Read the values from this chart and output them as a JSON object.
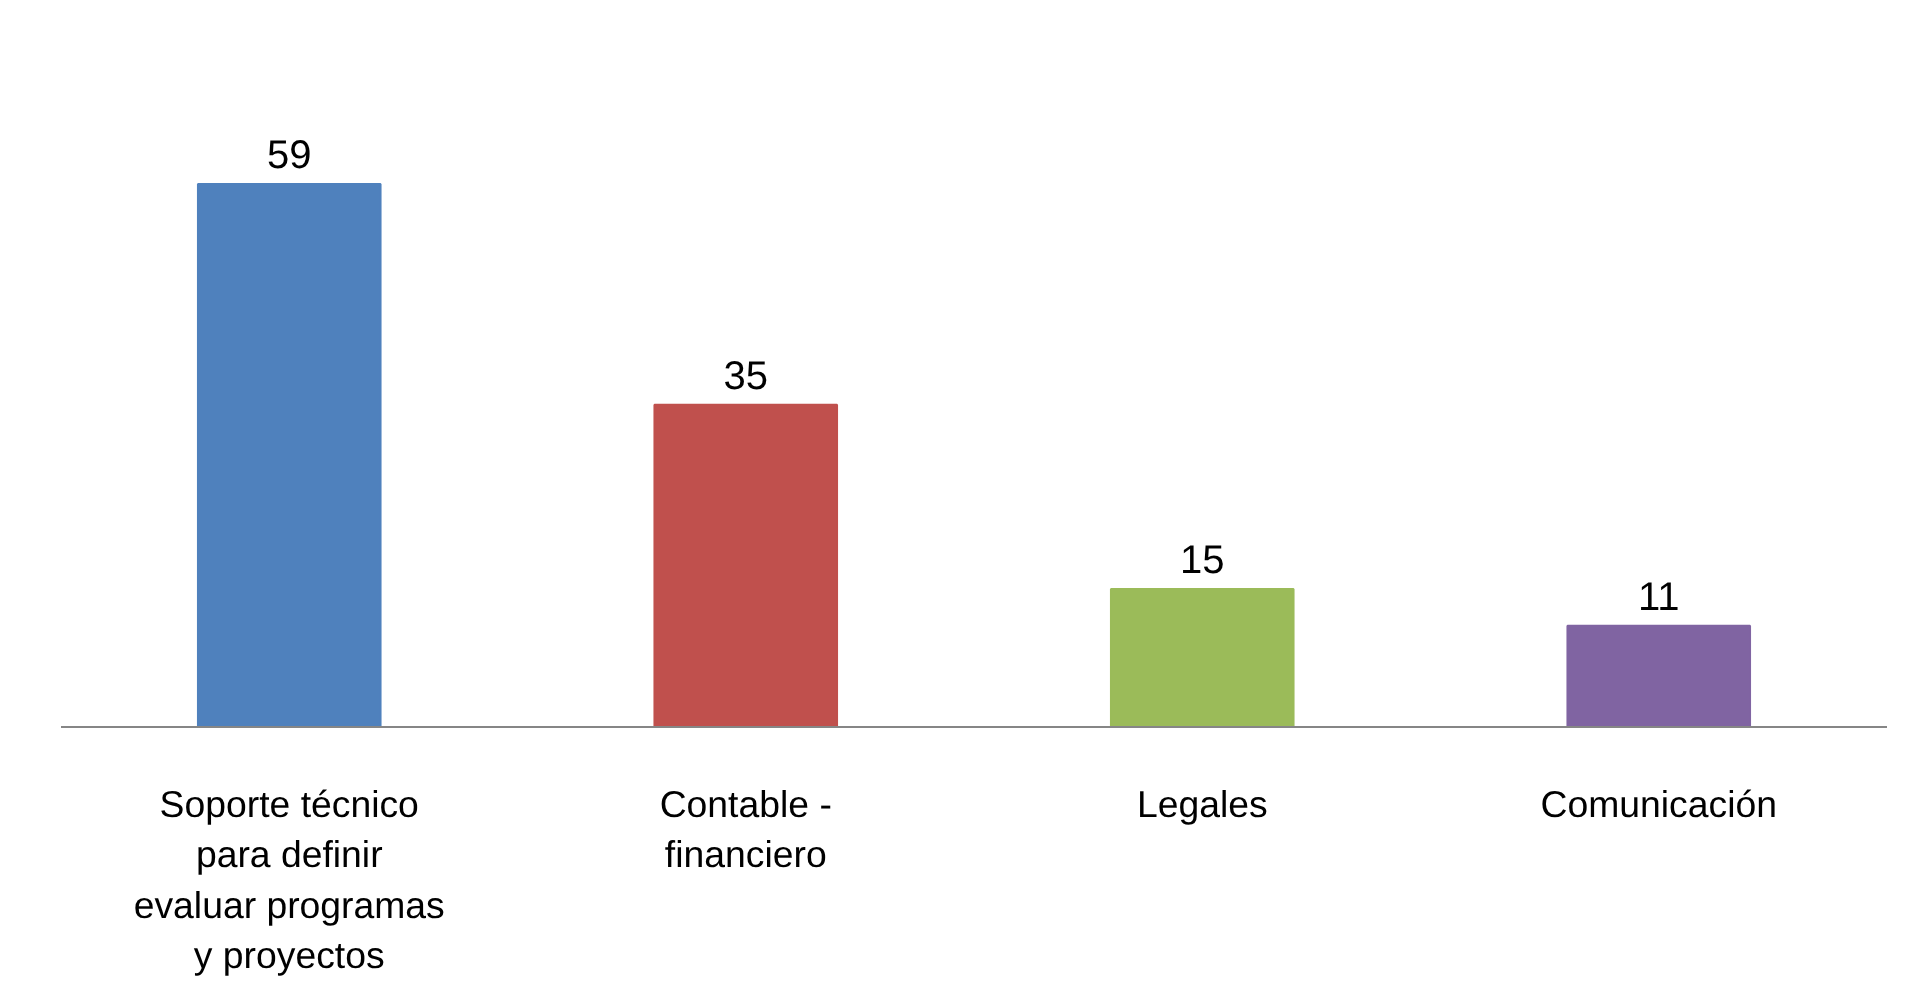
{
  "chart_data": {
    "type": "bar",
    "categories": [
      "Soporte técnico para definir evaluar programas y proyectos",
      "Contable - financiero",
      "Legales",
      "Comunicación"
    ],
    "values": [
      59,
      35,
      15,
      11
    ],
    "colors": [
      "#4f81bd",
      "#c0504d",
      "#9bbb59",
      "#8064a2"
    ],
    "data_labels": true
  }
}
